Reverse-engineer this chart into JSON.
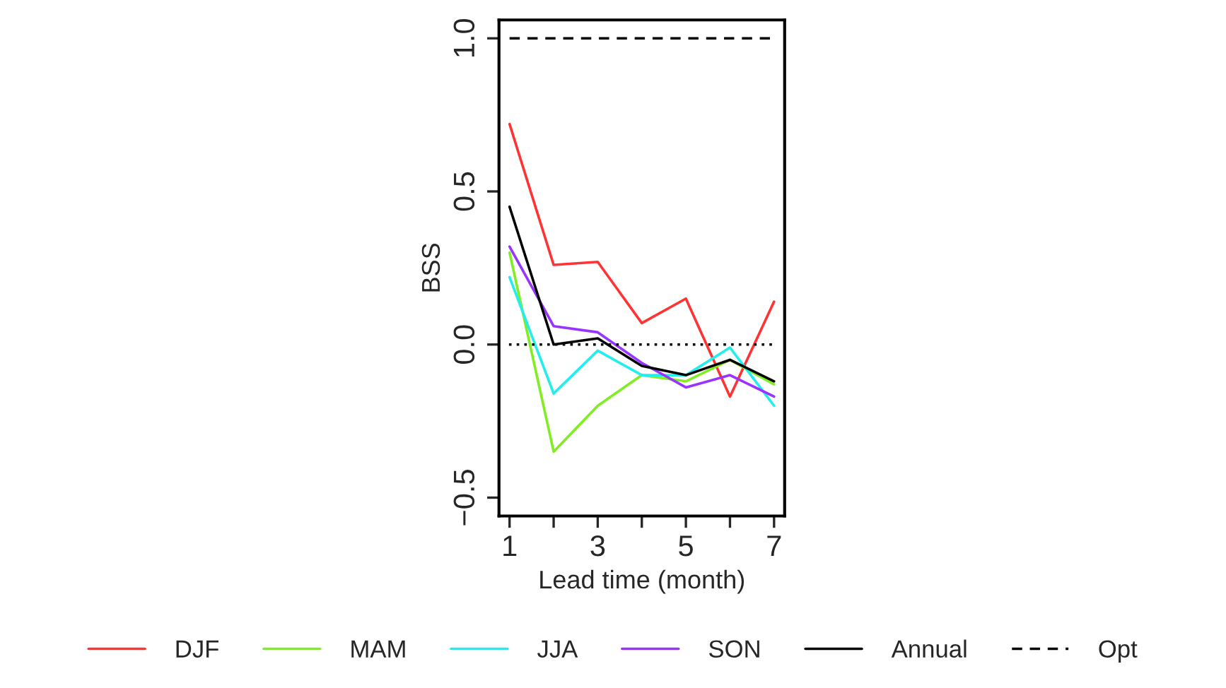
{
  "chart_data": {
    "type": "line",
    "xlabel": "Lead time (month)",
    "ylabel": "BSS",
    "x": [
      1,
      2,
      3,
      4,
      5,
      6,
      7
    ],
    "series": [
      {
        "name": "DJF",
        "color": "#ff3333",
        "values": [
          0.72,
          0.26,
          0.27,
          0.07,
          0.15,
          -0.17,
          0.14
        ]
      },
      {
        "name": "MAM",
        "color": "#80ee22",
        "values": [
          0.3,
          -0.35,
          -0.2,
          -0.1,
          -0.12,
          -0.05,
          -0.13
        ]
      },
      {
        "name": "JJA",
        "color": "#22eeee",
        "values": [
          0.22,
          -0.16,
          -0.02,
          -0.1,
          -0.1,
          -0.01,
          -0.2
        ]
      },
      {
        "name": "SON",
        "color": "#9933ff",
        "values": [
          0.32,
          0.06,
          0.04,
          -0.06,
          -0.14,
          -0.1,
          -0.17
        ]
      },
      {
        "name": "Annual",
        "color": "#000000",
        "values": [
          0.45,
          0.0,
          0.02,
          -0.07,
          -0.1,
          -0.05,
          -0.12
        ]
      },
      {
        "name": "Opt",
        "color": "#000000",
        "line_style": "dashed",
        "values": [
          1.0,
          1.0,
          1.0,
          1.0,
          1.0,
          1.0,
          1.0
        ]
      }
    ],
    "ref_lines": [
      {
        "axis": "y",
        "value": 0,
        "label": null,
        "color": "#000000",
        "line_style": "dotted"
      }
    ],
    "xlim": [
      0.76,
      7.24
    ],
    "ylim": [
      -0.56,
      1.06
    ],
    "xticks": [
      1,
      {
        "value": 2,
        "label": null
      },
      3,
      {
        "value": 4,
        "label": null
      },
      5,
      {
        "value": 6,
        "label": null
      },
      7
    ],
    "yticks": [
      {
        "value": -0.5,
        "label": "−0.5"
      },
      {
        "value": 0,
        "label": "0.0"
      },
      {
        "value": 0.5,
        "label": "0.5"
      },
      {
        "value": 1.0,
        "label": "1.0"
      }
    ],
    "legend": "bottom",
    "grid": false,
    "line_style": "solid",
    "marker": "none"
  }
}
